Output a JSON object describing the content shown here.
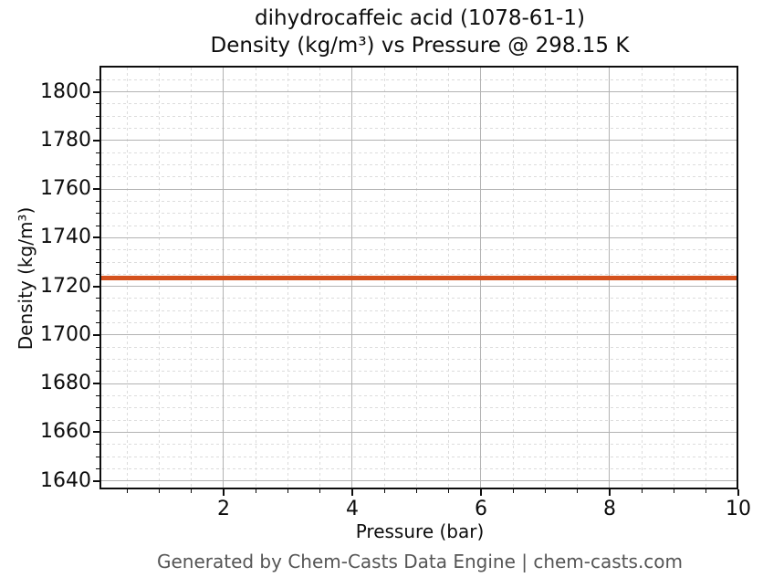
{
  "figure": {
    "title_line1": "dihydrocaffeic acid (1078-61-1)",
    "title_line2": "Density (kg/m³) vs Pressure @ 298.15 K",
    "xlabel": "Pressure (bar)",
    "ylabel": "Density (kg/m³)",
    "footer": "Generated by Chem-Casts Data Engine | chem-casts.com"
  },
  "chart_data": {
    "type": "line",
    "title": "dihydrocaffeic acid (1078-61-1)\nDensity (kg/m³) vs Pressure @ 298.15 K",
    "xlabel": "Pressure (bar)",
    "ylabel": "Density (kg/m³)",
    "xlim": [
      0.1,
      10
    ],
    "ylim": [
      1636.5,
      1810
    ],
    "x_major_ticks": [
      2,
      4,
      6,
      8,
      10
    ],
    "x_minor_step": 0.5,
    "y_major_ticks": [
      1640,
      1660,
      1680,
      1700,
      1720,
      1740,
      1760,
      1780,
      1800
    ],
    "y_minor_step": 5,
    "grid": {
      "major": "solid",
      "minor": "dashed"
    },
    "legend_position": "none",
    "series": [
      {
        "name": "Density @ 298.15 K",
        "x": [
          0.1,
          10
        ],
        "y": [
          1723.6,
          1723.6
        ],
        "color": "#d4521e"
      }
    ]
  },
  "colors": {
    "line": "#d4521e",
    "spine": "#0d0d0d",
    "grid_major": "#b3b3b3",
    "grid_minor": "#dcdcdc",
    "footer_text": "#555555",
    "background": "#ffffff"
  }
}
